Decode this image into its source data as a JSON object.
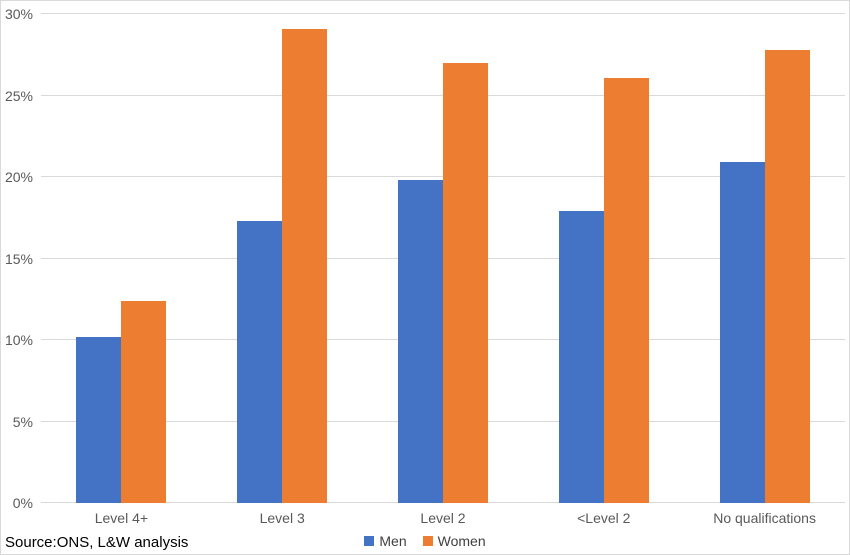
{
  "source_note": "Source:ONS, L&W analysis",
  "colors": {
    "men": "#4472C4",
    "women": "#ED7D31",
    "gridline": "#D9D9D9",
    "axis_text": "#595959",
    "legend_text": "#404040",
    "border": "#D9D9D9",
    "background": "#FFFFFF"
  },
  "chart_data": {
    "type": "bar",
    "title": "",
    "xlabel": "",
    "ylabel": "",
    "categories": [
      "Level 4+",
      "Level 3",
      "Level 2",
      "<Level 2",
      "No qualifications"
    ],
    "series": [
      {
        "name": "Men",
        "color": "#4472C4",
        "values": [
          10.2,
          17.3,
          19.8,
          17.9,
          20.9
        ]
      },
      {
        "name": "Women",
        "color": "#ED7D31",
        "values": [
          12.4,
          29.1,
          27.0,
          26.1,
          27.8
        ]
      }
    ],
    "ylim": [
      0,
      30
    ],
    "y_ticks": [
      0,
      5,
      10,
      15,
      20,
      25,
      30
    ],
    "y_tick_labels": [
      "0%",
      "5%",
      "10%",
      "15%",
      "20%",
      "25%",
      "30%"
    ],
    "grid": "horizontal",
    "legend_position": "bottom-center"
  }
}
